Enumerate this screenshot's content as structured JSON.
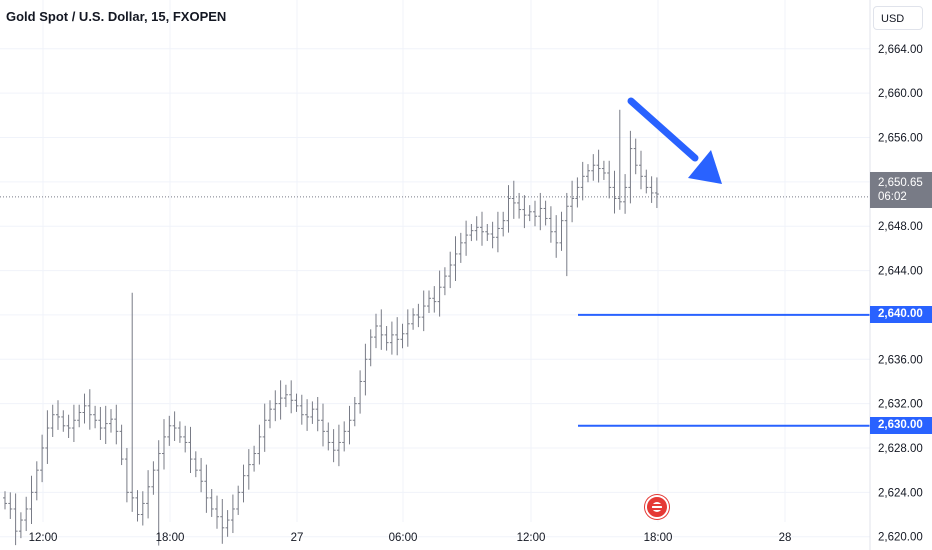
{
  "header": {
    "symbol": "Gold Spot / U.S. Dollar, 15, FXOPEN"
  },
  "currency_button": {
    "label": "USD"
  },
  "price_badge": {
    "price": "2,650.65",
    "countdown": "06:02"
  },
  "levels": [
    {
      "price": 2640,
      "label": "2,640.00",
      "color": "#2962ff"
    },
    {
      "price": 2630,
      "label": "2,630.00",
      "color": "#2962ff"
    }
  ],
  "colors": {
    "bars": "#787b86",
    "axis_text": "#131722",
    "grid": "#f0f3fa",
    "arrow": "#2962ff",
    "badge_bg": "#787b86"
  },
  "icons": {
    "event_marker": "us-flag-icon",
    "arrow": "down-right-arrow-icon"
  },
  "chart_data": {
    "type": "ohlc",
    "title": "Gold Spot / U.S. Dollar, 15, FXOPEN",
    "y_ticks": [
      "2,664.00",
      "2,660.00",
      "2,656.00",
      "2,652.00",
      "2,648.00",
      "2,644.00",
      "2,640.00",
      "2,636.00",
      "2,632.00",
      "2,628.00",
      "2,624.00",
      "2,620.00"
    ],
    "y_tick_values": [
      2664,
      2660,
      2656,
      2652,
      2648,
      2644,
      2640,
      2636,
      2632,
      2628,
      2624,
      2620
    ],
    "x_ticks": [
      "12:00",
      "18:00",
      "27",
      "06:00",
      "12:00",
      "18:00",
      "28"
    ],
    "ylim": [
      2618.8,
      2668.4
    ],
    "current_price": 2650.65,
    "grid": true,
    "close_series": [
      2623,
      2622.5,
      2620.5,
      2621.5,
      2622.5,
      2624,
      2626,
      2628,
      2629.8,
      2631,
      2630.8,
      2630,
      2629.8,
      2630.5,
      2631.2,
      2631.8,
      2631,
      2630.5,
      2629.8,
      2630.2,
      2630.6,
      2629.5,
      2627,
      2624,
      2623.5,
      2622,
      2623,
      2624.5,
      2626,
      2627.5,
      2629,
      2630,
      2629.8,
      2629,
      2628.5,
      2627,
      2626,
      2625,
      2623.5,
      2622.5,
      2621.8,
      2620.8,
      2621.5,
      2622.5,
      2624,
      2625.5,
      2626.5,
      2627.5,
      2629,
      2630.5,
      2631.5,
      2632,
      2632.5,
      2632.8,
      2632.3,
      2631.8,
      2631,
      2630.8,
      2631.5,
      2630.5,
      2629.5,
      2628.5,
      2627.8,
      2628.5,
      2629.5,
      2630.5,
      2632,
      2634,
      2636,
      2638,
      2639,
      2638.2,
      2637.5,
      2638.2,
      2637.8,
      2638.3,
      2639.2,
      2640,
      2639.8,
      2640.8,
      2641.5,
      2641.2,
      2642.5,
      2643.5,
      2644.5,
      2645.5,
      2646.5,
      2647.2,
      2647.6,
      2647.9,
      2647.5,
      2647.3,
      2647,
      2647.8,
      2648.5,
      2650.5,
      2650.1,
      2649.5,
      2649,
      2649.3,
      2648.9,
      2649.6,
      2648.7,
      2647.5,
      2646.5,
      2648.5,
      2649.8,
      2650.5,
      2651.5,
      2652.5,
      2653,
      2653.5,
      2653.2,
      2652.8,
      2651.5,
      2650.5,
      2650.2,
      2651.5,
      2655,
      2653.5,
      2652.5,
      2651.5,
      2651,
      2650.9
    ]
  }
}
